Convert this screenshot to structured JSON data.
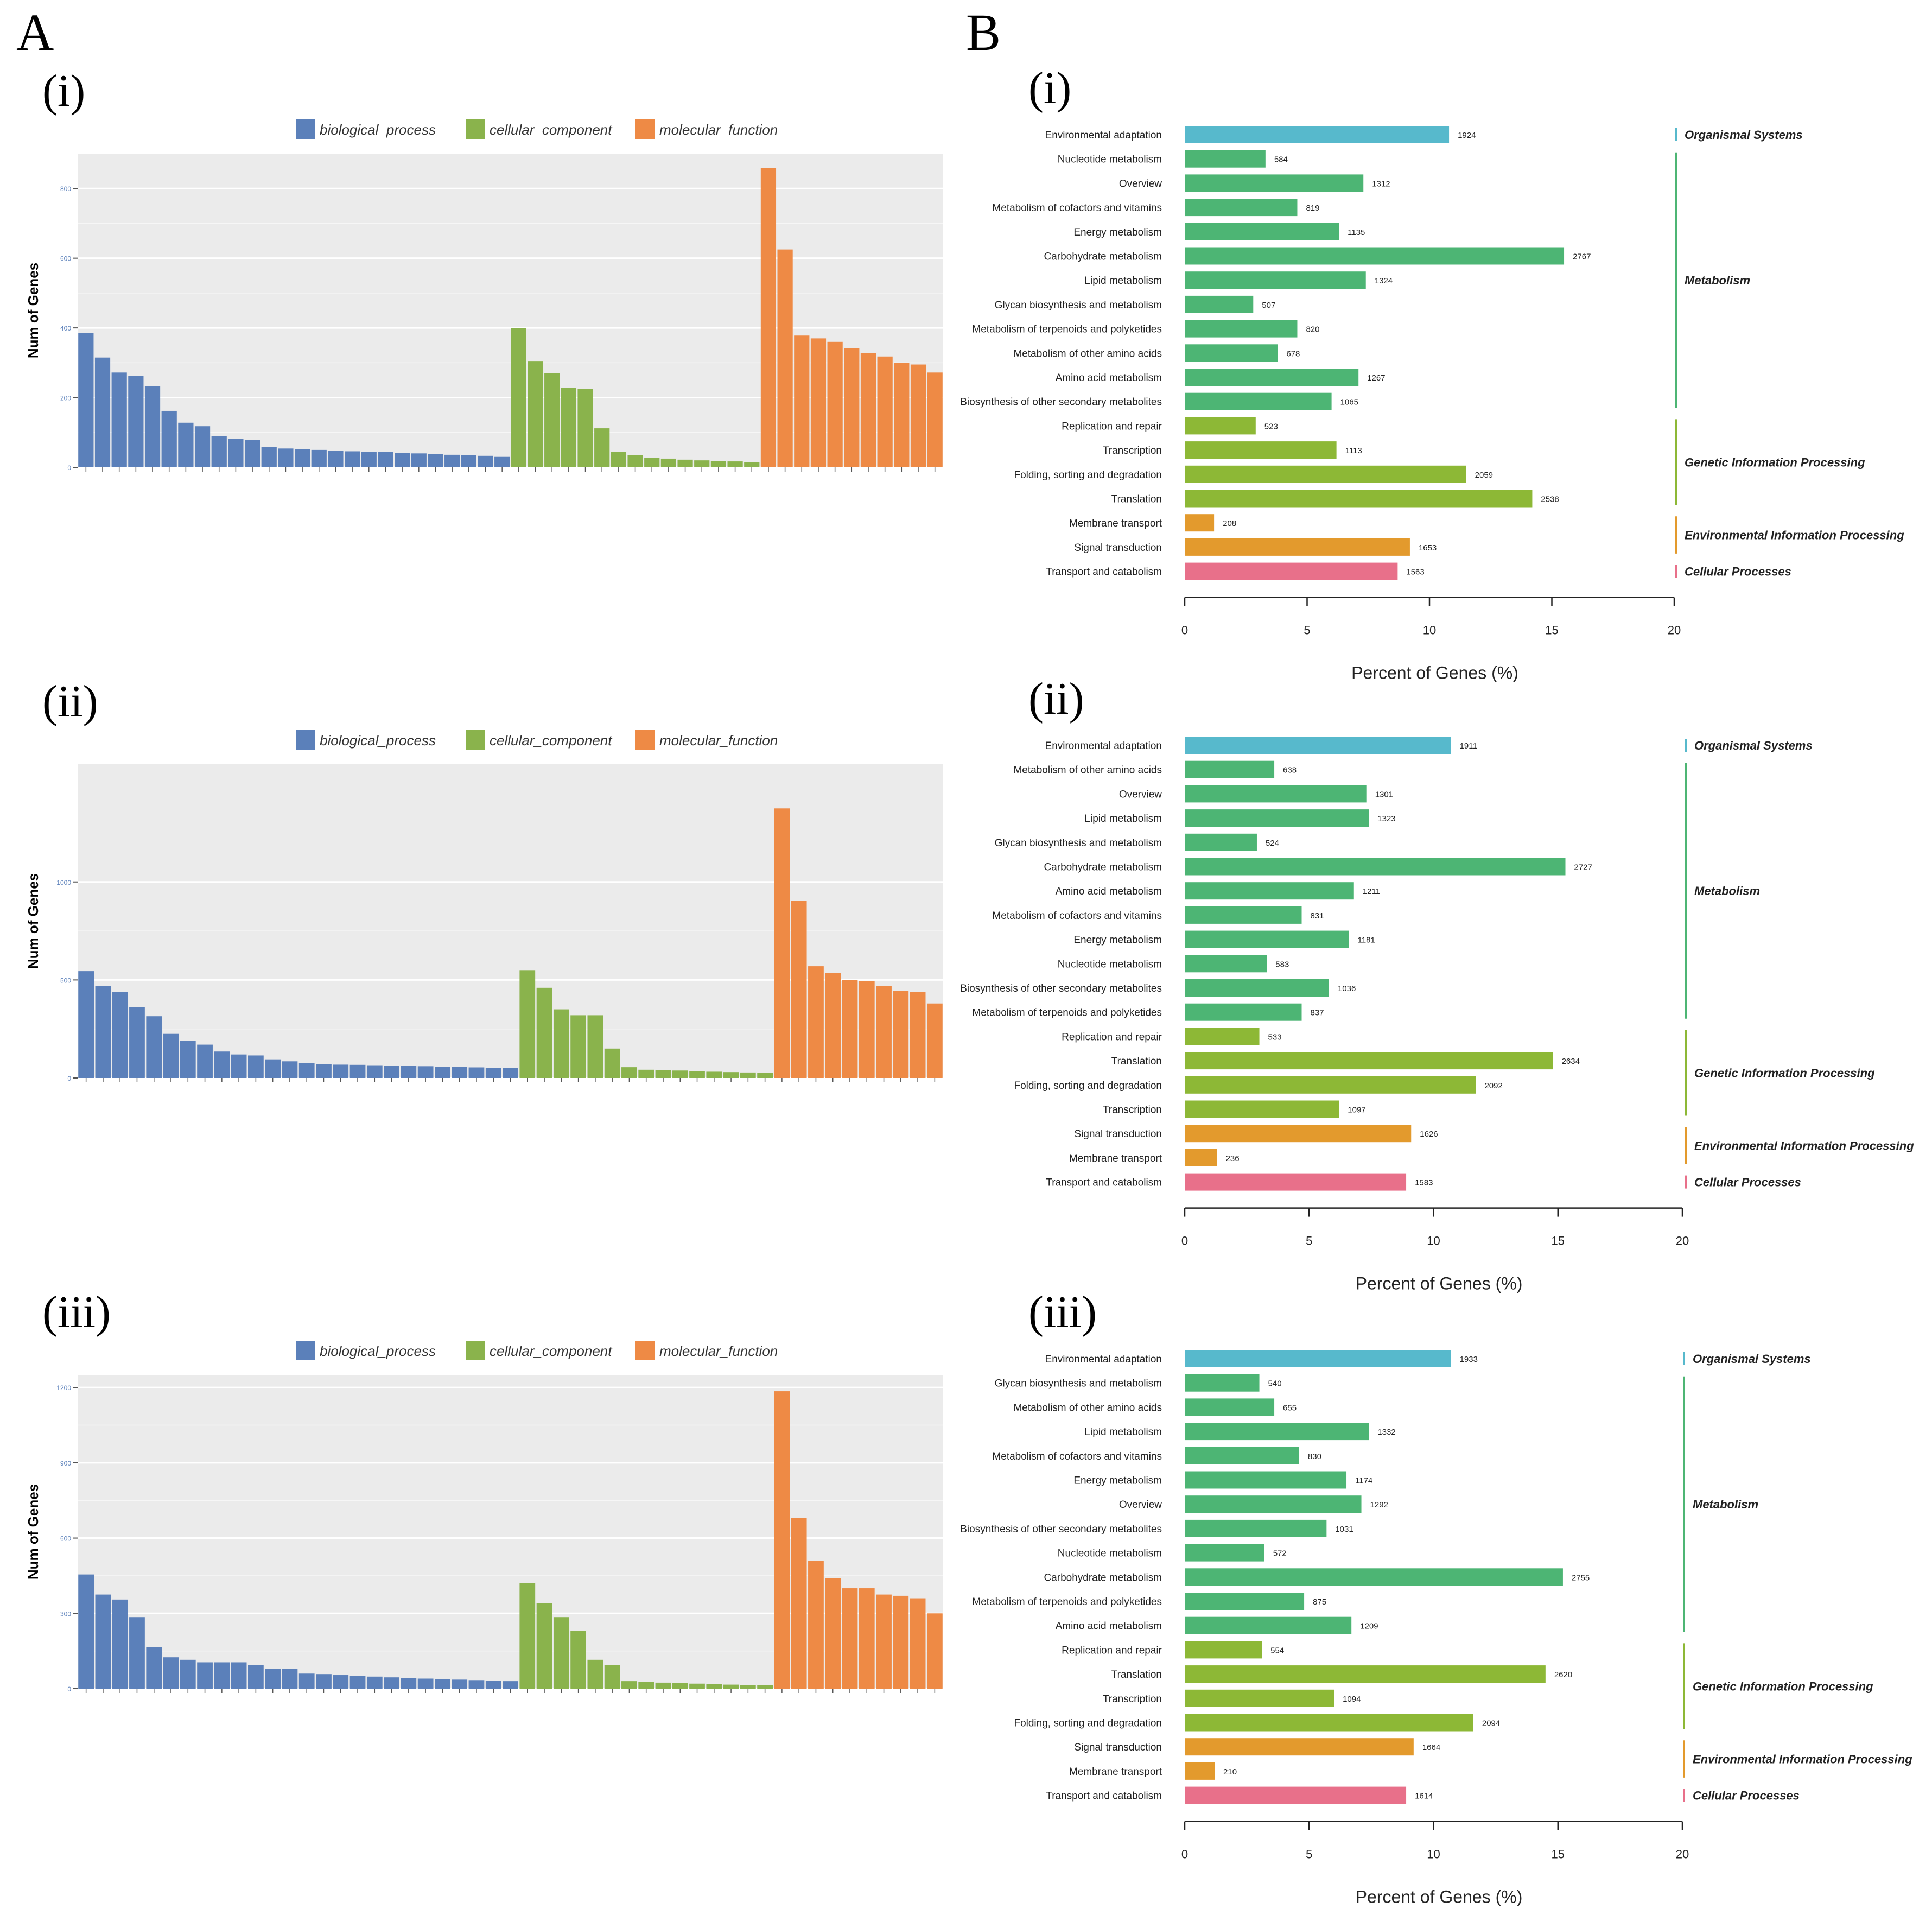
{
  "panel_labels": {
    "A": "A",
    "B": "B"
  },
  "go_legend": [
    {
      "name": "biological_process",
      "color": "#5B80BA"
    },
    {
      "name": "cellular_component",
      "color": "#8AB34C"
    },
    {
      "name": "molecular_function",
      "color": "#EE8A45"
    }
  ],
  "category_colors": {
    "Organismal Systems": "#57B9CC",
    "Metabolism": "#4DB574",
    "Genetic Information Processing": "#8DB836",
    "Environmental Information Processing": "#E39A2D",
    "Cellular Processes": "#E8708A"
  },
  "chart_data": [
    {
      "type": "bar",
      "panel": "A",
      "subpanel": "(i)",
      "ylabel": "Num of Genes",
      "ylim": [
        0,
        900
      ],
      "yticks": [
        0,
        200,
        400,
        600,
        800
      ],
      "series": [
        {
          "name": "biological_process",
          "values": [
            385,
            315,
            272,
            262,
            232,
            162,
            128,
            118,
            90,
            82,
            78,
            58,
            54,
            52,
            50,
            48,
            46,
            45,
            44,
            42,
            40,
            38,
            36,
            35,
            33,
            30
          ]
        },
        {
          "name": "cellular_component",
          "values": [
            400,
            305,
            270,
            228,
            225,
            112,
            45,
            35,
            28,
            25,
            22,
            20,
            18,
            17,
            15
          ]
        },
        {
          "name": "molecular_function",
          "values": [
            858,
            625,
            378,
            370,
            360,
            342,
            328,
            318,
            300,
            295,
            272
          ]
        }
      ]
    },
    {
      "type": "bar",
      "panel": "A",
      "subpanel": "(ii)",
      "ylabel": "Num of Genes",
      "ylim": [
        0,
        1600
      ],
      "yticks": [
        0,
        500,
        1000
      ],
      "series": [
        {
          "name": "biological_process",
          "values": [
            545,
            470,
            440,
            360,
            315,
            225,
            190,
            170,
            135,
            120,
            115,
            95,
            85,
            75,
            70,
            68,
            67,
            65,
            63,
            62,
            60,
            58,
            56,
            54,
            52,
            50
          ]
        },
        {
          "name": "cellular_component",
          "values": [
            550,
            460,
            350,
            320,
            320,
            150,
            55,
            42,
            40,
            38,
            35,
            32,
            30,
            28,
            25
          ]
        },
        {
          "name": "molecular_function",
          "values": [
            1375,
            905,
            570,
            535,
            500,
            495,
            470,
            445,
            440,
            380
          ]
        }
      ]
    },
    {
      "type": "bar",
      "panel": "A",
      "subpanel": "(iii)",
      "ylabel": "Num of Genes",
      "ylim": [
        0,
        1250
      ],
      "yticks": [
        0,
        300,
        600,
        900,
        1200
      ],
      "series": [
        {
          "name": "biological_process",
          "values": [
            455,
            375,
            355,
            285,
            165,
            125,
            115,
            105,
            105,
            105,
            95,
            80,
            78,
            60,
            58,
            54,
            50,
            48,
            45,
            42,
            40,
            38,
            36,
            34,
            32,
            30
          ]
        },
        {
          "name": "cellular_component",
          "values": [
            420,
            340,
            285,
            230,
            115,
            95,
            30,
            26,
            24,
            22,
            20,
            18,
            16,
            15,
            14
          ]
        },
        {
          "name": "molecular_function",
          "values": [
            1185,
            680,
            510,
            440,
            400,
            400,
            375,
            370,
            360,
            300
          ]
        }
      ]
    },
    {
      "type": "bar",
      "orientation": "horizontal",
      "panel": "B",
      "subpanel": "(i)",
      "xlabel": "Percent of Genes (%)",
      "xlim": [
        0,
        20
      ],
      "xticks": [
        "0",
        "5",
        "10",
        "15",
        "20"
      ],
      "bars": [
        {
          "label": "Environmental adaptation",
          "count": "1924",
          "percent": 10.8,
          "category": "Organismal Systems"
        },
        {
          "label": "Nucleotide metabolism",
          "count": "584",
          "percent": 3.3,
          "category": "Metabolism"
        },
        {
          "label": "Overview",
          "count": "1312",
          "percent": 7.3,
          "category": "Metabolism"
        },
        {
          "label": "Metabolism of cofactors and vitamins",
          "count": "819",
          "percent": 4.6,
          "category": "Metabolism"
        },
        {
          "label": "Energy metabolism",
          "count": "1135",
          "percent": 6.3,
          "category": "Metabolism"
        },
        {
          "label": "Carbohydrate metabolism",
          "count": "2767",
          "percent": 15.5,
          "category": "Metabolism"
        },
        {
          "label": "Lipid metabolism",
          "count": "1324",
          "percent": 7.4,
          "category": "Metabolism"
        },
        {
          "label": "Glycan biosynthesis and metabolism",
          "count": "507",
          "percent": 2.8,
          "category": "Metabolism"
        },
        {
          "label": "Metabolism of terpenoids and polyketides",
          "count": "820",
          "percent": 4.6,
          "category": "Metabolism"
        },
        {
          "label": "Metabolism of other amino acids",
          "count": "678",
          "percent": 3.8,
          "category": "Metabolism"
        },
        {
          "label": "Amino acid metabolism",
          "count": "1267",
          "percent": 7.1,
          "category": "Metabolism"
        },
        {
          "label": "Biosynthesis of other secondary metabolites",
          "count": "1065",
          "percent": 6.0,
          "category": "Metabolism"
        },
        {
          "label": "Replication and repair",
          "count": "523",
          "percent": 2.9,
          "category": "Genetic Information Processing"
        },
        {
          "label": "Transcription",
          "count": "1113",
          "percent": 6.2,
          "category": "Genetic Information Processing"
        },
        {
          "label": "Folding, sorting and degradation",
          "count": "2059",
          "percent": 11.5,
          "category": "Genetic Information Processing"
        },
        {
          "label": "Translation",
          "count": "2538",
          "percent": 14.2,
          "category": "Genetic Information Processing"
        },
        {
          "label": "Membrane transport",
          "count": "208",
          "percent": 1.2,
          "category": "Environmental Information Processing"
        },
        {
          "label": "Signal transduction",
          "count": "1653",
          "percent": 9.2,
          "category": "Environmental Information Processing"
        },
        {
          "label": "Transport and catabolism",
          "count": "1563",
          "percent": 8.7,
          "category": "Cellular Processes"
        }
      ]
    },
    {
      "type": "bar",
      "orientation": "horizontal",
      "panel": "B",
      "subpanel": "(ii)",
      "xlabel": "Percent of Genes (%)",
      "xlim": [
        0,
        20
      ],
      "xticks": [
        "0",
        "5",
        "10",
        "15",
        "20"
      ],
      "bars": [
        {
          "label": "Environmental adaptation",
          "count": "1911",
          "percent": 10.7,
          "category": "Organismal Systems"
        },
        {
          "label": "Metabolism of other amino acids",
          "count": "638",
          "percent": 3.6,
          "category": "Metabolism"
        },
        {
          "label": "Overview",
          "count": "1301",
          "percent": 7.3,
          "category": "Metabolism"
        },
        {
          "label": "Lipid metabolism",
          "count": "1323",
          "percent": 7.4,
          "category": "Metabolism"
        },
        {
          "label": "Glycan biosynthesis and metabolism",
          "count": "524",
          "percent": 2.9,
          "category": "Metabolism"
        },
        {
          "label": "Carbohydrate metabolism",
          "count": "2727",
          "percent": 15.3,
          "category": "Metabolism"
        },
        {
          "label": "Amino acid metabolism",
          "count": "1211",
          "percent": 6.8,
          "category": "Metabolism"
        },
        {
          "label": "Metabolism of cofactors and vitamins",
          "count": "831",
          "percent": 4.7,
          "category": "Metabolism"
        },
        {
          "label": "Energy metabolism",
          "count": "1181",
          "percent": 6.6,
          "category": "Metabolism"
        },
        {
          "label": "Nucleotide metabolism",
          "count": "583",
          "percent": 3.3,
          "category": "Metabolism"
        },
        {
          "label": "Biosynthesis of other secondary metabolites",
          "count": "1036",
          "percent": 5.8,
          "category": "Metabolism"
        },
        {
          "label": "Metabolism of terpenoids and polyketides",
          "count": "837",
          "percent": 4.7,
          "category": "Metabolism"
        },
        {
          "label": "Replication and repair",
          "count": "533",
          "percent": 3.0,
          "category": "Genetic Information Processing"
        },
        {
          "label": "Translation",
          "count": "2634",
          "percent": 14.8,
          "category": "Genetic Information Processing"
        },
        {
          "label": "Folding, sorting and degradation",
          "count": "2092",
          "percent": 11.7,
          "category": "Genetic Information Processing"
        },
        {
          "label": "Transcription",
          "count": "1097",
          "percent": 6.2,
          "category": "Genetic Information Processing"
        },
        {
          "label": "Signal transduction",
          "count": "1626",
          "percent": 9.1,
          "category": "Environmental Information Processing"
        },
        {
          "label": "Membrane transport",
          "count": "236",
          "percent": 1.3,
          "category": "Environmental Information Processing"
        },
        {
          "label": "Transport and catabolism",
          "count": "1583",
          "percent": 8.9,
          "category": "Cellular Processes"
        }
      ]
    },
    {
      "type": "bar",
      "orientation": "horizontal",
      "panel": "B",
      "subpanel": "(iii)",
      "xlabel": "Percent of Genes (%)",
      "xlim": [
        0,
        20
      ],
      "xticks": [
        "0",
        "5",
        "10",
        "15",
        "20"
      ],
      "bars": [
        {
          "label": "Environmental adaptation",
          "count": "1933",
          "percent": 10.7,
          "category": "Organismal Systems"
        },
        {
          "label": "Glycan biosynthesis and metabolism",
          "count": "540",
          "percent": 3.0,
          "category": "Metabolism"
        },
        {
          "label": "Metabolism of other amino acids",
          "count": "655",
          "percent": 3.6,
          "category": "Metabolism"
        },
        {
          "label": "Lipid metabolism",
          "count": "1332",
          "percent": 7.4,
          "category": "Metabolism"
        },
        {
          "label": "Metabolism of cofactors and vitamins",
          "count": "830",
          "percent": 4.6,
          "category": "Metabolism"
        },
        {
          "label": "Energy metabolism",
          "count": "1174",
          "percent": 6.5,
          "category": "Metabolism"
        },
        {
          "label": "Overview",
          "count": "1292",
          "percent": 7.1,
          "category": "Metabolism"
        },
        {
          "label": "Biosynthesis of other secondary metabolites",
          "count": "1031",
          "percent": 5.7,
          "category": "Metabolism"
        },
        {
          "label": "Nucleotide metabolism",
          "count": "572",
          "percent": 3.2,
          "category": "Metabolism"
        },
        {
          "label": "Carbohydrate metabolism",
          "count": "2755",
          "percent": 15.2,
          "category": "Metabolism"
        },
        {
          "label": "Metabolism of terpenoids and polyketides",
          "count": "875",
          "percent": 4.8,
          "category": "Metabolism"
        },
        {
          "label": "Amino acid metabolism",
          "count": "1209",
          "percent": 6.7,
          "category": "Metabolism"
        },
        {
          "label": "Replication and repair",
          "count": "554",
          "percent": 3.1,
          "category": "Genetic Information Processing"
        },
        {
          "label": "Translation",
          "count": "2620",
          "percent": 14.5,
          "category": "Genetic Information Processing"
        },
        {
          "label": "Transcription",
          "count": "1094",
          "percent": 6.0,
          "category": "Genetic Information Processing"
        },
        {
          "label": "Folding, sorting and degradation",
          "count": "2094",
          "percent": 11.6,
          "category": "Genetic Information Processing"
        },
        {
          "label": "Signal transduction",
          "count": "1664",
          "percent": 9.2,
          "category": "Environmental Information Processing"
        },
        {
          "label": "Membrane transport",
          "count": "210",
          "percent": 1.2,
          "category": "Environmental Information Processing"
        },
        {
          "label": "Transport and catabolism",
          "count": "1614",
          "percent": 8.9,
          "category": "Cellular Processes"
        }
      ]
    }
  ]
}
